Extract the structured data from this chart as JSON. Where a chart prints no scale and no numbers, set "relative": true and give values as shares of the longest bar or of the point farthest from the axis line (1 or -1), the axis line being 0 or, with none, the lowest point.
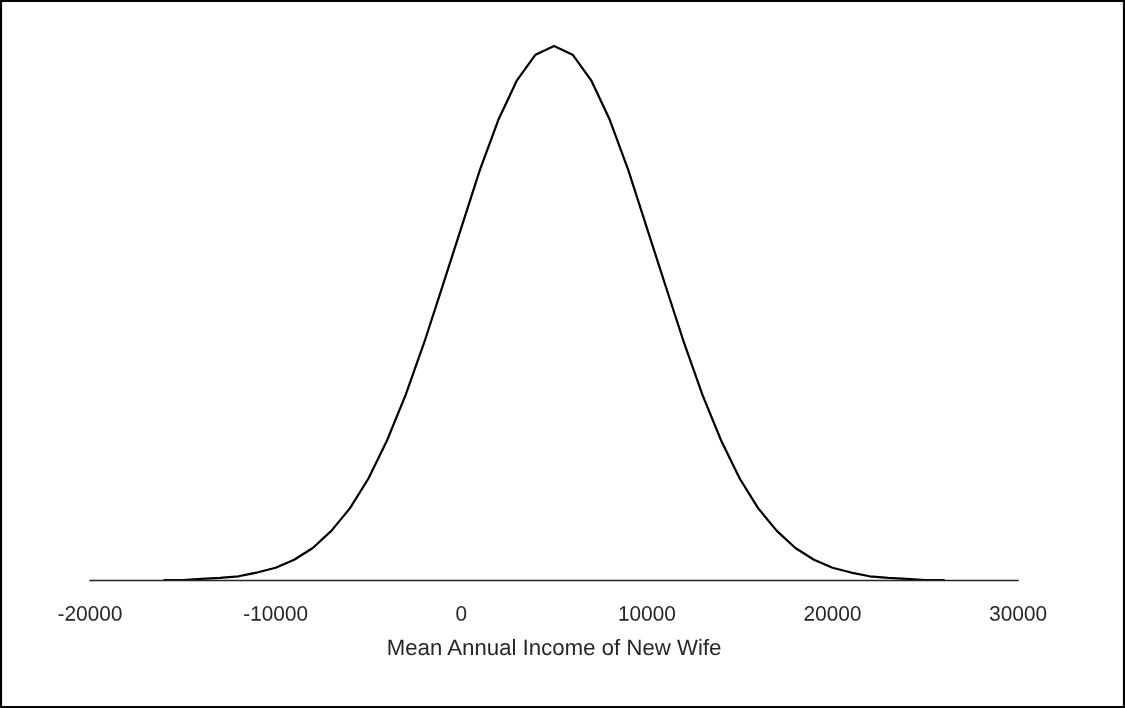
{
  "chart_data": {
    "type": "line",
    "relative": true,
    "xlabel": "Mean Annual Income of New Wife",
    "xlim": [
      -20000,
      30000
    ],
    "xticks": [
      -20000,
      -10000,
      0,
      10000,
      20000,
      30000
    ],
    "grid": false,
    "marker": "none",
    "line_style": "solid",
    "series": [
      {
        "color": "#000000",
        "x": [
          -16000,
          -15000,
          -14000,
          -13000,
          -12000,
          -11000,
          -10000,
          -9000,
          -8000,
          -7000,
          -6000,
          -5000,
          -4000,
          -3000,
          -2000,
          -1000,
          0,
          1000,
          2000,
          3000,
          4000,
          5000,
          6000,
          7000,
          8000,
          9000,
          10000,
          11000,
          12000,
          13000,
          14000,
          15000,
          16000,
          17000,
          18000,
          19000,
          20000,
          21000,
          22000,
          23000,
          24000,
          25000,
          26000
        ],
        "values": [
          0.001,
          0.001,
          0.003,
          0.005,
          0.008,
          0.015,
          0.024,
          0.039,
          0.061,
          0.093,
          0.135,
          0.191,
          0.262,
          0.347,
          0.445,
          0.552,
          0.66,
          0.768,
          0.862,
          0.936,
          0.984,
          1.0,
          0.984,
          0.936,
          0.862,
          0.768,
          0.66,
          0.552,
          0.445,
          0.347,
          0.262,
          0.191,
          0.135,
          0.093,
          0.061,
          0.039,
          0.024,
          0.015,
          0.008,
          0.005,
          0.003,
          0.001,
          0.001
        ]
      }
    ]
  }
}
